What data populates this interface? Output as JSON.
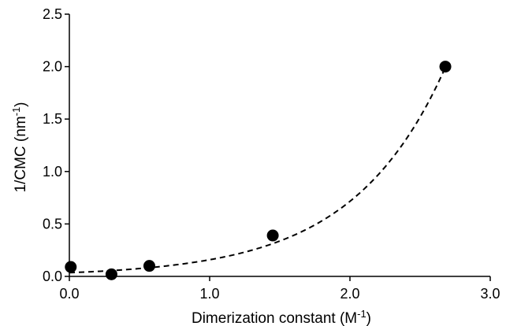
{
  "chart_data": {
    "type": "scatter",
    "title": "",
    "xlabel": {
      "text": "Dimerization constant (M",
      "sup": "-1",
      "close": ")"
    },
    "ylabel": {
      "text": "1/CMC (nm",
      "sup": "-1",
      "close": ")"
    },
    "xlim": [
      0,
      3
    ],
    "ylim": [
      0,
      2.5
    ],
    "x_ticks": [
      "0.0",
      "1.0",
      "2.0",
      "3.0"
    ],
    "y_ticks": [
      "0.0",
      "0.5",
      "1.0",
      "1.5",
      "2.0",
      "2.5"
    ],
    "grid": false,
    "legend": "none",
    "series": [
      {
        "points": [
          {
            "x": 0.01,
            "y": 0.09
          },
          {
            "x": 0.3,
            "y": 0.02
          },
          {
            "x": 0.57,
            "y": 0.1
          },
          {
            "x": 1.45,
            "y": 0.39
          },
          {
            "x": 2.68,
            "y": 2.0
          }
        ],
        "marker": "filled-circle",
        "color": "#000000"
      }
    ],
    "trendline": {
      "type": "exponential",
      "style": "dashed",
      "color": "#000000",
      "a": 0.0352,
      "b": 1.506,
      "x_range": [
        0,
        2.68
      ]
    }
  }
}
